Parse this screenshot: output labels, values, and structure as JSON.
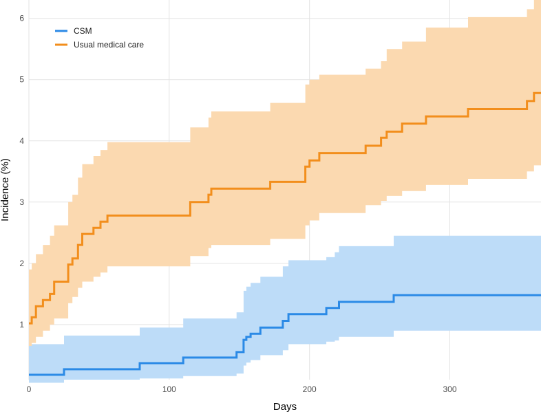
{
  "chart_data": {
    "type": "line",
    "step": true,
    "xlabel": "Days",
    "ylabel": "Incidence (%)",
    "xlim": [
      0,
      365
    ],
    "ylim": [
      0.1,
      6.3
    ],
    "xticks": [
      0,
      100,
      200,
      300
    ],
    "yticks": [
      1,
      2,
      3,
      4,
      5,
      6
    ],
    "grid": true,
    "legend_position": "top-left",
    "series": [
      {
        "name": "CSM",
        "color": "#2b8ae6",
        "band_color": "#bddcf8",
        "x": [
          0,
          25,
          79,
          110,
          148,
          153,
          155,
          158,
          165,
          181,
          185,
          212,
          218,
          221,
          260,
          365
        ],
        "y": [
          0.18,
          0.27,
          0.37,
          0.46,
          0.55,
          0.75,
          0.8,
          0.85,
          0.95,
          1.06,
          1.17,
          1.27,
          1.27,
          1.37,
          1.48,
          1.48
        ],
        "lower": [
          0.05,
          0.1,
          0.12,
          0.16,
          0.2,
          0.33,
          0.38,
          0.42,
          0.5,
          0.58,
          0.68,
          0.72,
          0.74,
          0.8,
          0.9,
          0.9
        ],
        "upper": [
          0.68,
          0.82,
          0.95,
          1.1,
          1.2,
          1.55,
          1.62,
          1.68,
          1.78,
          1.95,
          2.05,
          2.1,
          2.18,
          2.28,
          2.45,
          2.45
        ]
      },
      {
        "name": "Usual medical care",
        "color": "#f28e1c",
        "band_color": "#fbd9b0",
        "x": [
          0,
          2,
          5,
          10,
          15,
          18,
          23,
          28,
          31,
          35,
          38,
          41,
          46,
          51,
          56,
          115,
          128,
          130,
          172,
          197,
          200,
          207,
          240,
          251,
          255,
          266,
          283,
          313,
          355,
          360,
          365
        ],
        "y": [
          1.02,
          1.12,
          1.3,
          1.4,
          1.5,
          1.7,
          1.7,
          1.98,
          2.08,
          2.3,
          2.48,
          2.48,
          2.58,
          2.68,
          2.78,
          3.0,
          3.12,
          3.22,
          3.33,
          3.58,
          3.68,
          3.8,
          3.92,
          4.05,
          4.15,
          4.28,
          4.4,
          4.52,
          4.65,
          4.78,
          4.78
        ],
        "lower": [
          0.65,
          0.7,
          0.8,
          0.9,
          1.0,
          1.1,
          1.1,
          1.35,
          1.45,
          1.6,
          1.7,
          1.7,
          1.78,
          1.85,
          1.95,
          2.12,
          2.25,
          2.3,
          2.4,
          2.62,
          2.7,
          2.82,
          2.95,
          3.02,
          3.1,
          3.18,
          3.28,
          3.38,
          3.5,
          3.6,
          3.6
        ],
        "upper": [
          1.9,
          2.0,
          2.15,
          2.3,
          2.45,
          2.62,
          2.62,
          3.0,
          3.12,
          3.4,
          3.62,
          3.62,
          3.75,
          3.85,
          3.98,
          4.22,
          4.38,
          4.48,
          4.62,
          4.92,
          5.0,
          5.08,
          5.18,
          5.3,
          5.5,
          5.62,
          5.85,
          6.02,
          6.15,
          6.3,
          6.3
        ]
      }
    ]
  }
}
